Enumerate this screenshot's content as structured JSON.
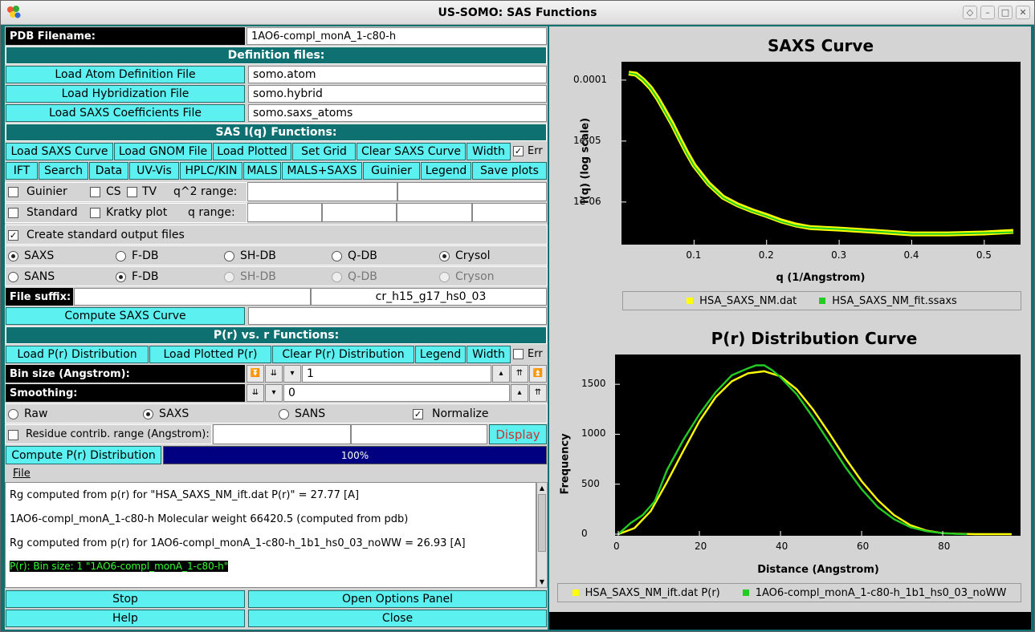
{
  "window": {
    "title": "US-SOMO: SAS Functions"
  },
  "pdb": {
    "label": "PDB Filename:",
    "value": "1AO6-compl_monA_1-c80-h"
  },
  "definition": {
    "header": "Definition files:",
    "atom_button": "Load Atom Definition File",
    "atom_value": "somo.atom",
    "hybrid_button": "Load Hybridization File",
    "hybrid_value": "somo.hybrid",
    "saxs_button": "Load SAXS Coefficients File",
    "saxs_value": "somo.saxs_atoms"
  },
  "sas": {
    "header": "SAS I(q) Functions:",
    "row1": [
      "Load SAXS Curve",
      "Load GNOM File",
      "Load Plotted",
      "Set Grid",
      "Clear SAXS Curve",
      "Width"
    ],
    "err": "Err",
    "row2": [
      "IFT",
      "Search",
      "Data",
      "UV-Vis",
      "HPLC/KIN",
      "MALS",
      "MALS+SAXS",
      "Guinier",
      "Legend",
      "Save plots"
    ],
    "guinier": "Guinier",
    "cs": "CS",
    "tv": "TV",
    "q2range": "q^2 range:",
    "standard": "Standard",
    "kratky": "Kratky plot",
    "qrange": "q range:",
    "create_std": "Create standard output files",
    "saxs_row": [
      "SAXS",
      "F-DB",
      "SH-DB",
      "Q-DB",
      "Crysol"
    ],
    "sans_row": [
      "SANS",
      "F-DB",
      "SH-DB",
      "Q-DB",
      "Cryson"
    ],
    "suffix_label": "File suffix:",
    "suffix_value": "cr_h15_g17_hs0_03",
    "compute_button": "Compute SAXS Curve"
  },
  "pr": {
    "header": "P(r) vs. r Functions:",
    "buttons": [
      "Load P(r) Distribution",
      "Load Plotted P(r)",
      "Clear P(r) Distribution",
      "Legend",
      "Width"
    ],
    "err": "Err",
    "bin_label": "Bin size (Angstrom):",
    "bin_value": "1",
    "smooth_label": "Smoothing:",
    "smooth_value": "0",
    "modes": [
      "Raw",
      "SAXS",
      "SANS"
    ],
    "normalize": "Normalize",
    "residue_label": "Residue contrib.  range (Angstrom):",
    "display_button": "Display",
    "compute_button": "Compute P(r) Distribution",
    "progress": "100%",
    "progress_value": 100
  },
  "menu": {
    "file": "File"
  },
  "log": {
    "lines": [
      "Rg computed from p(r) for  \"HSA_SAXS_NM_ift.dat P(r)\" = 27.77 [A]",
      "1AO6-compl_monA_1-c80-h Molecular weight 66420.5 (computed from pdb)",
      "Rg computed from p(r) for 1AO6-compl_monA_1-c80-h_1b1_hs0_03_noWW = 26.93 [A]",
      "P(r): Bin size: 1 \"1AO6-compl_monA_1-c80-h\""
    ]
  },
  "footer": {
    "stop": "Stop",
    "options": "Open Options Panel",
    "help": "Help",
    "close": "Close"
  },
  "colors": {
    "teal": "#0e7070",
    "cyan_button": "#5cf0f0",
    "progress": "#000080",
    "series_yellow": "#ffff00",
    "series_green": "#22cc22"
  },
  "chart_data": [
    {
      "type": "line",
      "title": "SAXS Curve",
      "xlabel": "q (1/Angstrom)",
      "ylabel": "I(q) (log scale)",
      "yscale": "log",
      "xlim": [
        0,
        0.55
      ],
      "ylim": [
        2e-07,
        0.0002
      ],
      "xticks": [
        "0.1",
        "0.2",
        "0.3",
        "0.4",
        "0.5"
      ],
      "yticks": [
        "0.0001",
        "1e-05",
        "1e-06"
      ],
      "legend": "bottom",
      "series": [
        {
          "name": "HSA_SAXS_NM.dat",
          "color": "#ffff00",
          "x": [
            0.01,
            0.02,
            0.03,
            0.04,
            0.05,
            0.06,
            0.07,
            0.08,
            0.09,
            0.1,
            0.12,
            0.14,
            0.16,
            0.18,
            0.2,
            0.22,
            0.24,
            0.26,
            0.28,
            0.3,
            0.35,
            0.4,
            0.45,
            0.5,
            0.54
          ],
          "y": [
            0.00013,
            0.000125,
            0.0001,
            7.5e-05,
            5e-05,
            3.1e-05,
            1.9e-05,
            1.1e-05,
            6.5e-06,
            4e-06,
            2e-06,
            1.2e-06,
            9e-07,
            7.2e-07,
            6e-07,
            4.9e-07,
            4.2e-07,
            3.8e-07,
            3.7e-07,
            3.6e-07,
            3.3e-07,
            3e-07,
            3e-07,
            3.1e-07,
            3.3e-07
          ]
        },
        {
          "name": "HSA_SAXS_NM_fit.ssaxs",
          "color": "#22cc22",
          "x": [
            0.01,
            0.02,
            0.03,
            0.04,
            0.05,
            0.06,
            0.07,
            0.08,
            0.09,
            0.1,
            0.12,
            0.14,
            0.16,
            0.18,
            0.2,
            0.22,
            0.24,
            0.26,
            0.28,
            0.3,
            0.35,
            0.4,
            0.45,
            0.5,
            0.54
          ],
          "y": [
            0.00013,
            0.000124,
            0.0001,
            7.4e-05,
            4.9e-05,
            3e-05,
            1.85e-05,
            1.07e-05,
            6.3e-06,
            3.9e-06,
            1.95e-06,
            1.18e-06,
            8.8e-07,
            7.1e-07,
            5.9e-07,
            4.8e-07,
            4.1e-07,
            3.8e-07,
            3.7e-07,
            3.6e-07,
            3.3e-07,
            3e-07,
            3e-07,
            3.1e-07,
            3.2e-07
          ]
        }
      ]
    },
    {
      "type": "line",
      "title": "P(r) Distribution Curve",
      "xlabel": "Distance (Angstrom)",
      "ylabel": "Frequency",
      "xlim": [
        0,
        98
      ],
      "ylim": [
        0,
        1750
      ],
      "xticks": [
        "0",
        "20",
        "40",
        "60",
        "80"
      ],
      "yticks": [
        "0",
        "500",
        "1000",
        "1500"
      ],
      "legend": "bottom",
      "series": [
        {
          "name": "HSA_SAXS_NM_ift.dat P(r)",
          "color": "#ffff00",
          "x": [
            0,
            4,
            8,
            12,
            16,
            20,
            24,
            28,
            32,
            36,
            40,
            44,
            48,
            52,
            56,
            60,
            64,
            68,
            72,
            76,
            80,
            84,
            88,
            92,
            97
          ],
          "y": [
            0,
            60,
            230,
            520,
            830,
            1130,
            1370,
            1530,
            1610,
            1630,
            1580,
            1450,
            1250,
            1010,
            760,
            530,
            340,
            190,
            90,
            35,
            10,
            3,
            0,
            0,
            0
          ]
        },
        {
          "name": "1AO6-compl_monA_1-c80-h_1b1_hs0_03_noWW",
          "color": "#22cc22",
          "x": [
            0,
            3,
            6,
            9,
            12,
            16,
            20,
            24,
            28,
            32,
            34,
            36,
            38,
            40,
            44,
            48,
            52,
            56,
            60,
            64,
            68,
            72,
            76,
            80,
            84,
            86
          ],
          "y": [
            0,
            110,
            190,
            330,
            640,
            940,
            1200,
            1420,
            1590,
            1660,
            1690,
            1690,
            1640,
            1570,
            1400,
            1170,
            920,
            670,
            450,
            270,
            150,
            70,
            30,
            10,
            2,
            0
          ]
        }
      ]
    }
  ]
}
